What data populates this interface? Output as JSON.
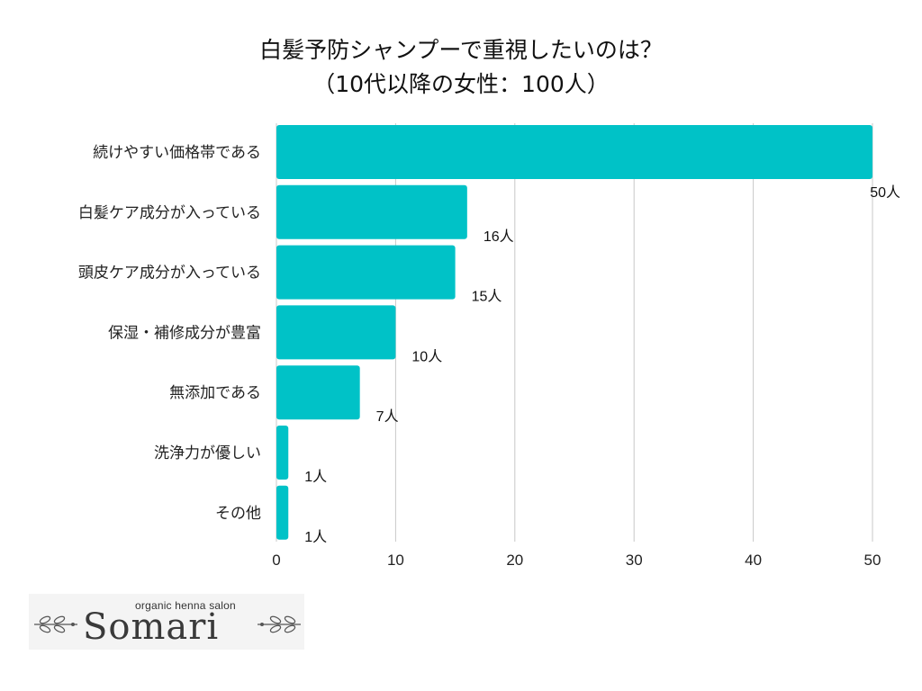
{
  "title_line1": "白髪予防シャンプーで重視したいのは？",
  "title_line2": "（10代以降の女性：100人）",
  "chart_data": {
    "type": "bar",
    "orientation": "horizontal",
    "title": "白髪予防シャンプーで重視したいのは？（10代以降の女性：100人）",
    "categories": [
      "続けやすい価格帯である",
      "白髪ケア成分が入っている",
      "頭皮ケア成分が入っている",
      "保湿・補修成分が豊富",
      "無添加である",
      "洗浄力が優しい",
      "その他"
    ],
    "values": [
      50,
      16,
      15,
      10,
      7,
      1,
      1
    ],
    "value_labels": [
      "50人",
      "16人",
      "15人",
      "10人",
      "7人",
      "1人",
      "1人"
    ],
    "xlim": [
      0,
      50
    ],
    "xticks": [
      0,
      10,
      20,
      30,
      40,
      50
    ],
    "xtick_labels": [
      "0",
      "10",
      "20",
      "30",
      "40",
      "50"
    ],
    "grid": true,
    "bar_color": "#00c2c7"
  },
  "logo": {
    "tagline": "organic henna salon",
    "name": "Somari"
  }
}
